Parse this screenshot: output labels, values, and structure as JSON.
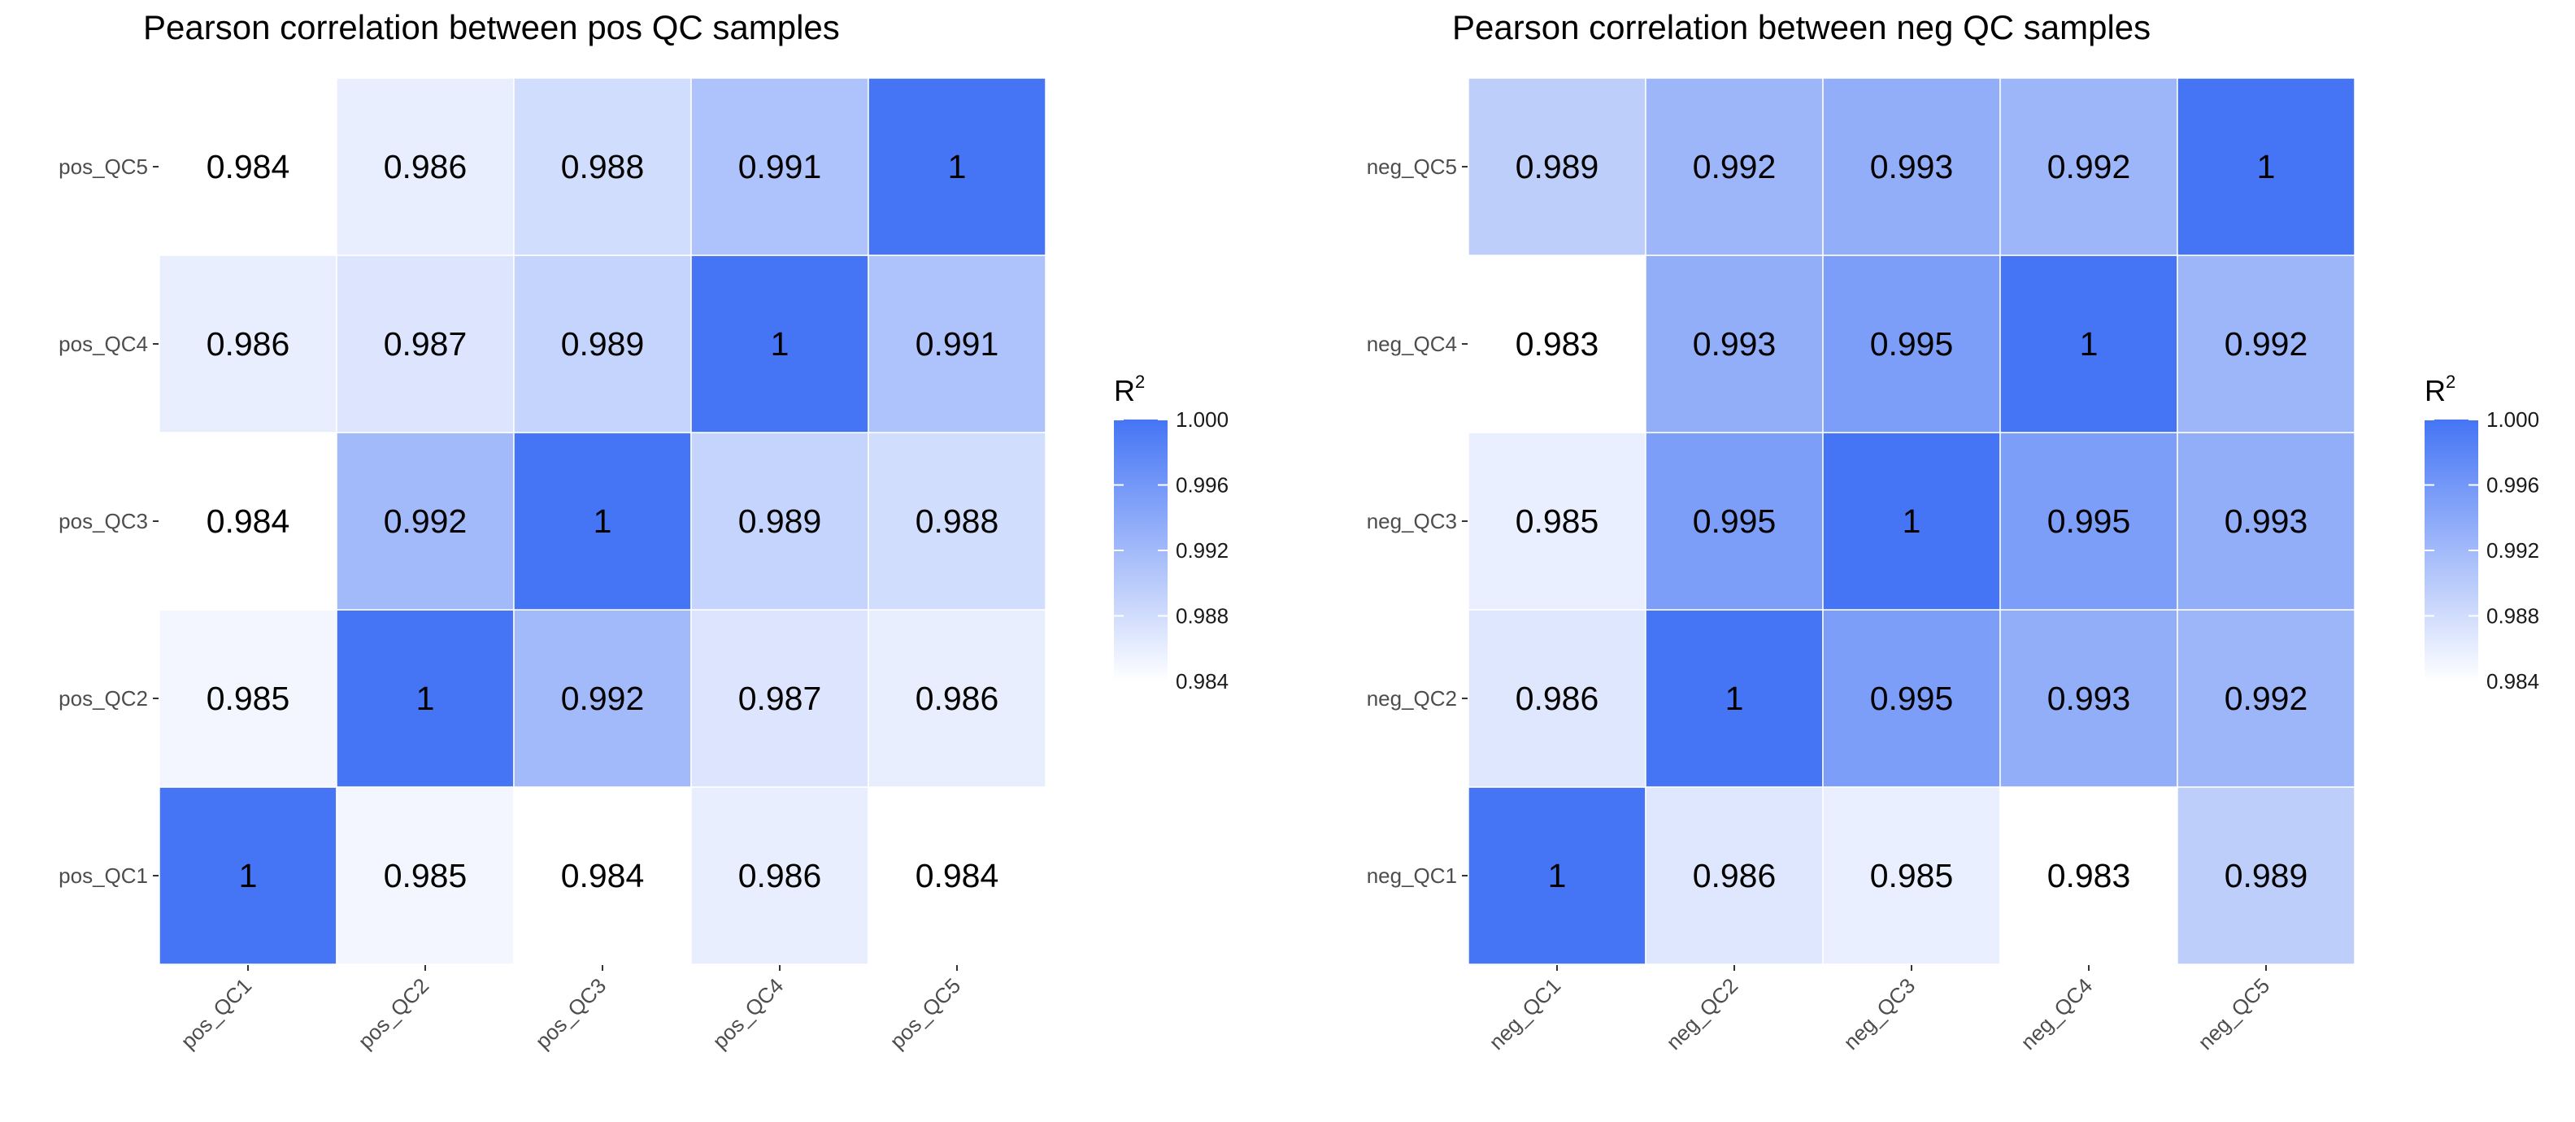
{
  "chart_data": [
    {
      "type": "heatmap",
      "title": "Pearson correlation between pos QC samples",
      "x_categories": [
        "pos_QC1",
        "pos_QC2",
        "pos_QC3",
        "pos_QC4",
        "pos_QC5"
      ],
      "y_categories": [
        "pos_QC1",
        "pos_QC2",
        "pos_QC3",
        "pos_QC4",
        "pos_QC5"
      ],
      "values": [
        [
          1,
          0.985,
          0.984,
          0.986,
          0.984
        ],
        [
          0.985,
          1,
          0.992,
          0.987,
          0.986
        ],
        [
          0.984,
          0.992,
          1,
          0.989,
          0.988
        ],
        [
          0.986,
          0.987,
          0.989,
          1,
          0.991
        ],
        [
          0.984,
          0.986,
          0.988,
          0.991,
          1
        ]
      ],
      "labels": [
        [
          "1",
          "0.985",
          "0.984",
          "0.986",
          "0.984"
        ],
        [
          "0.985",
          "1",
          "0.992",
          "0.987",
          "0.986"
        ],
        [
          "0.984",
          "0.992",
          "1",
          "0.989",
          "0.988"
        ],
        [
          "0.986",
          "0.987",
          "0.989",
          "1",
          "0.991"
        ],
        [
          "0.984",
          "0.986",
          "0.988",
          "0.991",
          "1"
        ]
      ],
      "color_range": [
        0.984,
        1.0
      ],
      "colors": {
        "low": "#ffffff",
        "high": "#4575f5"
      },
      "legend": {
        "title": "R",
        "title_superscript": "2",
        "ticks": [
          1.0,
          0.996,
          0.992,
          0.988,
          0.984
        ],
        "tick_labels": [
          "1.000",
          "0.996",
          "0.992",
          "0.988",
          "0.984"
        ],
        "position": "right"
      }
    },
    {
      "type": "heatmap",
      "title": "Pearson correlation between neg QC samples",
      "x_categories": [
        "neg_QC1",
        "neg_QC2",
        "neg_QC3",
        "neg_QC4",
        "neg_QC5"
      ],
      "y_categories": [
        "neg_QC1",
        "neg_QC2",
        "neg_QC3",
        "neg_QC4",
        "neg_QC5"
      ],
      "values": [
        [
          1,
          0.986,
          0.985,
          0.983,
          0.989
        ],
        [
          0.986,
          1,
          0.995,
          0.993,
          0.992
        ],
        [
          0.985,
          0.995,
          1,
          0.995,
          0.993
        ],
        [
          0.983,
          0.993,
          0.995,
          1,
          0.992
        ],
        [
          0.989,
          0.992,
          0.993,
          0.992,
          1
        ]
      ],
      "labels": [
        [
          "1",
          "0.986",
          "0.985",
          "0.983",
          "0.989"
        ],
        [
          "0.986",
          "1",
          "0.995",
          "0.993",
          "0.992"
        ],
        [
          "0.985",
          "0.995",
          "1",
          "0.995",
          "0.993"
        ],
        [
          "0.983",
          "0.993",
          "0.995",
          "1",
          "0.992"
        ],
        [
          "0.989",
          "0.992",
          "0.993",
          "0.992",
          "1"
        ]
      ],
      "color_range": [
        0.983,
        1.0
      ],
      "colors": {
        "low": "#ffffff",
        "high": "#4575f5"
      },
      "legend": {
        "title": "R",
        "title_superscript": "2",
        "ticks": [
          1.0,
          0.996,
          0.992,
          0.988,
          0.984
        ],
        "tick_labels": [
          "1.000",
          "0.996",
          "0.992",
          "0.988",
          "0.984"
        ],
        "position": "right"
      }
    }
  ]
}
